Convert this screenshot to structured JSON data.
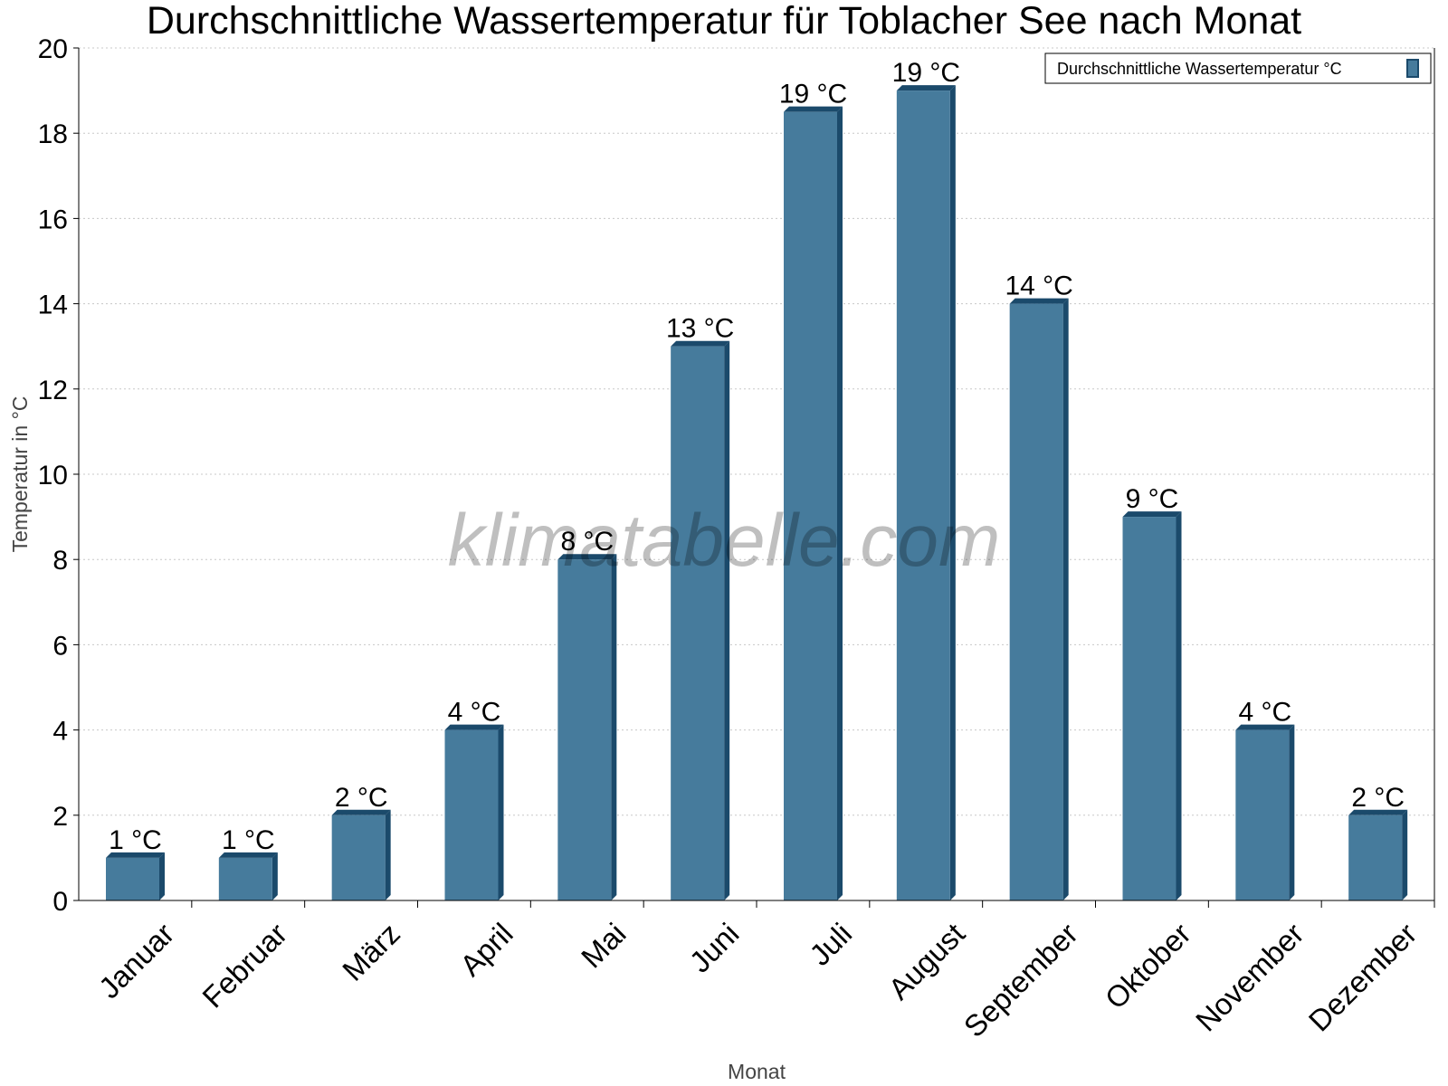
{
  "chart_data": {
    "type": "bar",
    "title": "Durchschnittliche Wassertemperatur für Toblacher See nach Monat",
    "xlabel": "Monat",
    "ylabel": "Temperatur in °C",
    "ylim": [
      0,
      20
    ],
    "yticks": [
      "0",
      "2",
      "4",
      "6",
      "8",
      "10",
      "12",
      "14",
      "16",
      "18",
      "20"
    ],
    "grid": true,
    "legend": {
      "placement": "top-right",
      "entries": [
        "Durchschnittliche Wassertemperatur °C"
      ]
    },
    "categories": [
      "Januar",
      "Februar",
      "März",
      "April",
      "Mai",
      "Juni",
      "Juli",
      "August",
      "September",
      "Oktober",
      "November",
      "Dezember"
    ],
    "series": [
      {
        "name": "Durchschnittliche Wassertemperatur °C",
        "values": [
          1,
          1,
          2,
          4,
          8,
          13,
          18.5,
          19,
          14,
          9,
          4,
          2
        ],
        "labels": [
          "1 °C",
          "1 °C",
          "2 °C",
          "4 °C",
          "8 °C",
          "13 °C",
          "19 °C",
          "19 °C",
          "14 °C",
          "9 °C",
          "4 °C",
          "2 °C"
        ]
      }
    ],
    "watermark": "klimatabelle.com",
    "colors": {
      "bar": "#467b9c",
      "bar_side": "#1b4a6b",
      "grid": "#c8c8c8"
    }
  }
}
